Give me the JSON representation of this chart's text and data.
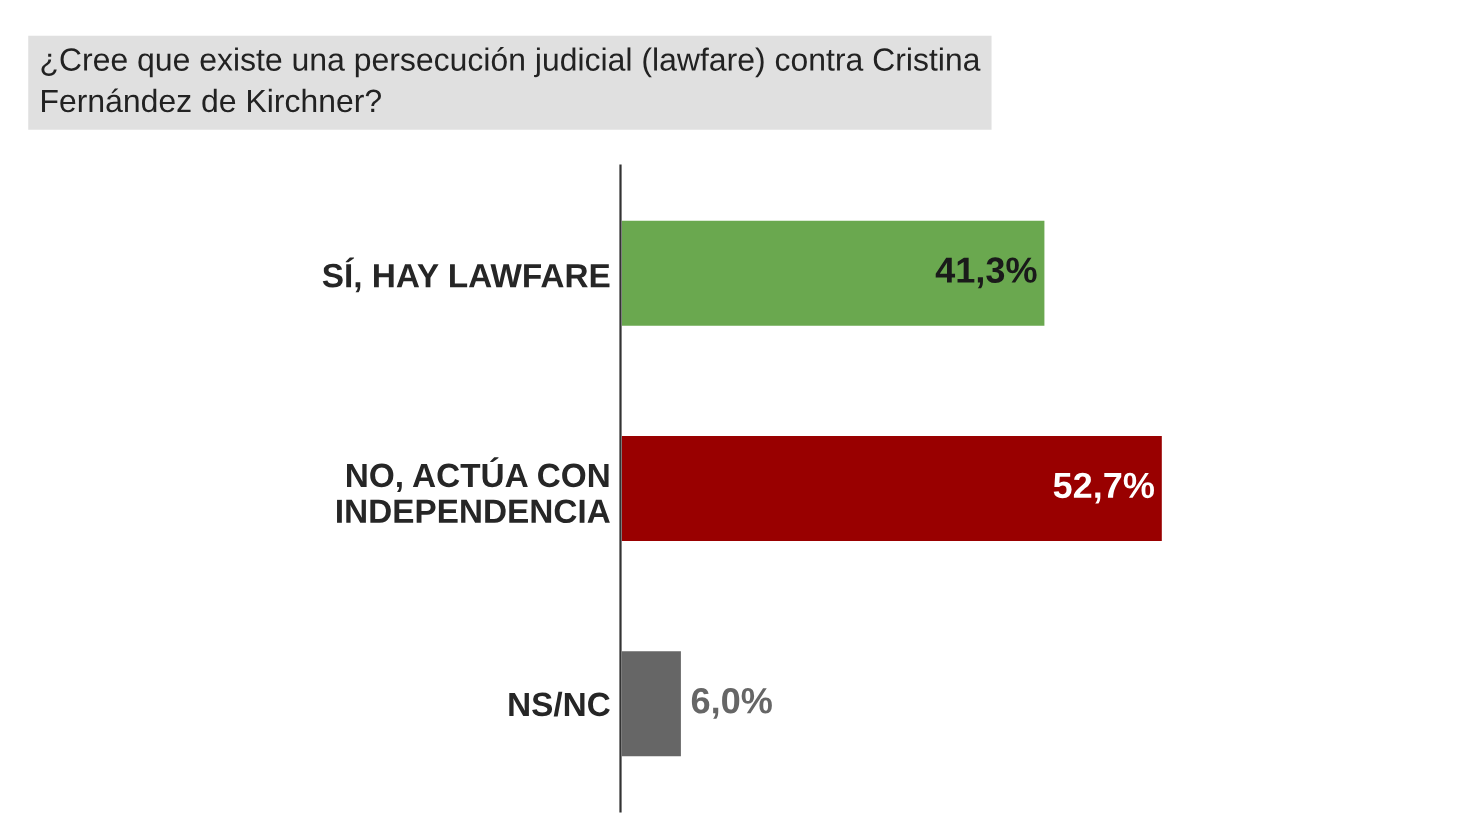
{
  "chart_data": {
    "type": "bar",
    "orientation": "horizontal",
    "title": "¿Cree que existe una persecución judicial (lawfare) contra Cristina\nFernández de Kirchner?",
    "categories": [
      "SÍ, HAY LAWFARE",
      "NO, ACTÚA CON\nINDEPENDENCIA",
      "NS/NC"
    ],
    "values": [
      41.3,
      52.7,
      6.0
    ],
    "value_labels": [
      "41,3%",
      "52,7%",
      "6,0%"
    ],
    "colors": [
      "#6aa84f",
      "#990000",
      "#666666"
    ],
    "tick_labels": "y"
  }
}
